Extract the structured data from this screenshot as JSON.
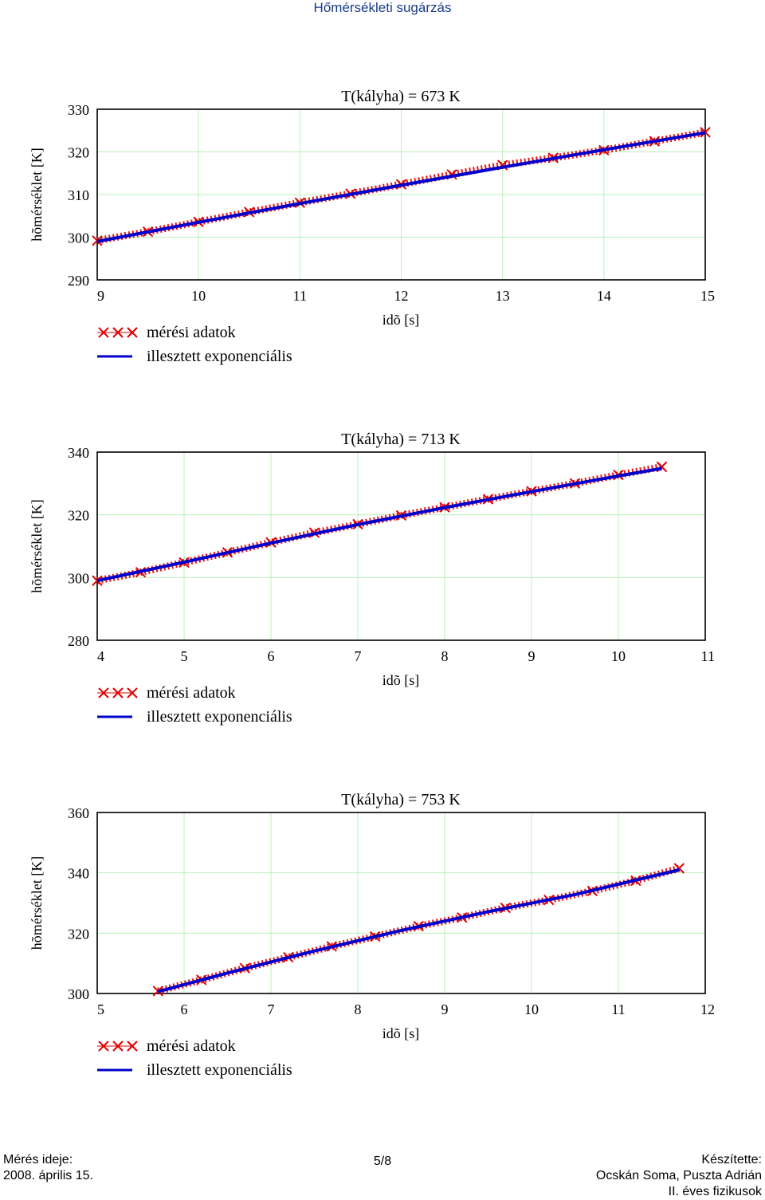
{
  "page": {
    "header": "Hőmérsékleti sugárzás",
    "page_number": "5/8",
    "footer_left": {
      "label": "Mérés ideje:",
      "date": "2008. április 15."
    },
    "footer_right": {
      "label": "Készítette:",
      "authors": "Ocskán Soma, Puszta Adrián",
      "course": "II. éves fizikusok"
    }
  },
  "colors": {
    "measured": "#e00000",
    "fitted": "#0000cc",
    "grid": "#b8f0b8",
    "header": "#1a3c8c"
  },
  "chart_data": [
    {
      "type": "line",
      "title": "T(kályha) = 673 K",
      "xlabel": "idõ [s]",
      "ylabel": "hõmérséklet [K]",
      "xlim": [
        9,
        15
      ],
      "ylim": [
        290,
        330
      ],
      "xticks": [
        "9",
        "10",
        "11",
        "12",
        "13",
        "14",
        "15"
      ],
      "yticks": [
        "290",
        "300",
        "310",
        "320",
        "330"
      ],
      "grid": true,
      "legend": "bottom-left",
      "series": [
        {
          "name": "mérési adatok",
          "marker": "x",
          "x": [
            9,
            9.5,
            10,
            10.5,
            11,
            11.5,
            12,
            12.5,
            13,
            13.5,
            14,
            14.5,
            15
          ],
          "y": [
            299.2,
            301.3,
            303.6,
            305.9,
            308.1,
            310.2,
            312.4,
            314.7,
            316.9,
            318.6,
            320.4,
            322.5,
            324.6
          ]
        },
        {
          "name": "illesztett exponenciális",
          "marker": "line",
          "x": [
            9,
            10,
            11,
            12,
            13,
            14,
            15
          ],
          "y": [
            299.0,
            303.5,
            307.9,
            312.2,
            316.4,
            320.5,
            324.5
          ]
        }
      ]
    },
    {
      "type": "line",
      "title": "T(kályha) = 713 K",
      "xlabel": "idõ [s]",
      "ylabel": "hõmérséklet [K]",
      "xlim": [
        4,
        11
      ],
      "ylim": [
        280,
        340
      ],
      "xticks": [
        "4",
        "5",
        "6",
        "7",
        "8",
        "9",
        "10",
        "11"
      ],
      "yticks": [
        "280",
        "300",
        "320",
        "340"
      ],
      "grid": true,
      "legend": "bottom-left",
      "series": [
        {
          "name": "mérési adatok",
          "marker": "x",
          "x": [
            4,
            4.5,
            5,
            5.5,
            6,
            6.5,
            7,
            7.5,
            8,
            8.5,
            9,
            9.5,
            10,
            10.5
          ],
          "y": [
            299.0,
            301.7,
            304.8,
            308.0,
            311.2,
            314.3,
            317.0,
            319.8,
            322.4,
            325.0,
            327.5,
            330.0,
            332.7,
            335.3
          ]
        },
        {
          "name": "illesztett exponenciális",
          "marker": "line",
          "x": [
            4,
            5,
            6,
            7,
            8,
            9,
            10,
            10.5
          ],
          "y": [
            299.0,
            304.9,
            311.0,
            316.9,
            322.3,
            327.4,
            332.4,
            334.8
          ]
        }
      ]
    },
    {
      "type": "line",
      "title": "T(kályha) = 753 K",
      "xlabel": "idõ [s]",
      "ylabel": "hõmérséklet [K]",
      "xlim": [
        5,
        12
      ],
      "ylim": [
        300,
        360
      ],
      "xticks": [
        "5",
        "6",
        "7",
        "8",
        "9",
        "10",
        "11",
        "12"
      ],
      "yticks": [
        "300",
        "320",
        "340",
        "360"
      ],
      "grid": true,
      "legend": "bottom-left",
      "series": [
        {
          "name": "mérési adatok",
          "marker": "x",
          "x": [
            5.7,
            6.2,
            6.7,
            7.2,
            7.7,
            8.2,
            8.7,
            9.2,
            9.7,
            10.2,
            10.7,
            11.2,
            11.7
          ],
          "y": [
            300.8,
            304.5,
            308.4,
            312.0,
            315.6,
            318.9,
            322.3,
            325.2,
            328.4,
            331.0,
            334.0,
            337.4,
            341.5
          ]
        },
        {
          "name": "illesztett exponenciális",
          "marker": "line",
          "x": [
            5.7,
            6.5,
            7.5,
            8.5,
            9.5,
            10.5,
            11.7
          ],
          "y": [
            300.6,
            306.8,
            314.1,
            320.9,
            327.1,
            332.8,
            341.0
          ]
        }
      ]
    }
  ]
}
